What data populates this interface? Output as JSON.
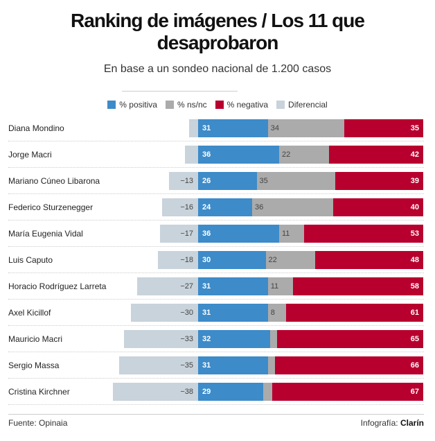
{
  "header": {
    "title_line1": "Ranking de imágenes / Los 11 que",
    "title_line2": "desaprobaron",
    "subtitle": "En base a un sondeo nacional de 1.200 casos"
  },
  "colors": {
    "positiva": "#3d8bc9",
    "nsnc": "#ababab",
    "negativa": "#b8002e",
    "diferencial": "#c8d3db"
  },
  "footer": {
    "source": "Fuente: Opinaia",
    "credit_prefix": "Infografía: ",
    "credit_brand": "Clarín"
  },
  "chart_data": {
    "type": "bar",
    "title": "Ranking de imágenes / Los 11 que desaprobaron",
    "subtitle": "En base a un sondeo nacional de 1.200 casos",
    "orientation": "horizontal-stacked-diverging",
    "legend_position": "top-center",
    "legend": [
      "% positiva",
      "% ns/nc",
      "% negativa",
      "Diferencial"
    ],
    "categories": [
      "Diana Mondino",
      "Jorge Macri",
      "Mariano Cúneo Libarona",
      "Federico Sturzenegger",
      "María Eugenia Vidal",
      "Luis Caputo",
      "Horacio Rodríguez Larreta",
      "Axel Kicillof",
      "Mauricio Macri",
      "Sergio Massa",
      "Cristina Kirchner"
    ],
    "series": [
      {
        "name": "% positiva",
        "values": [
          31,
          36,
          26,
          24,
          36,
          30,
          31,
          31,
          32,
          31,
          29
        ]
      },
      {
        "name": "% ns/nc",
        "values": [
          34,
          22,
          35,
          36,
          11,
          22,
          11,
          8,
          3,
          3,
          4
        ]
      },
      {
        "name": "% negativa",
        "values": [
          35,
          42,
          39,
          40,
          53,
          48,
          58,
          61,
          65,
          66,
          67
        ]
      },
      {
        "name": "Diferencial",
        "values": [
          -4,
          -6,
          -13,
          -16,
          -17,
          -18,
          -27,
          -30,
          -33,
          -35,
          -38
        ]
      }
    ],
    "labels": {
      "positiva": [
        "31",
        "36",
        "26",
        "24",
        "36",
        "30",
        "31",
        "31",
        "32",
        "31",
        "29"
      ],
      "nsnc": [
        "34",
        "22",
        "35",
        "36",
        "11",
        "22",
        "11",
        "8",
        "",
        "",
        ""
      ],
      "negativa": [
        "35",
        "42",
        "39",
        "40",
        "53",
        "48",
        "58",
        "61",
        "65",
        "66",
        "67"
      ],
      "diferencial": [
        "",
        "",
        "−13",
        "−16",
        "−17",
        "−18",
        "−27",
        "−30",
        "−33",
        "−35",
        "−38"
      ]
    },
    "xlim": [
      -40,
      100
    ],
    "grid": false
  }
}
